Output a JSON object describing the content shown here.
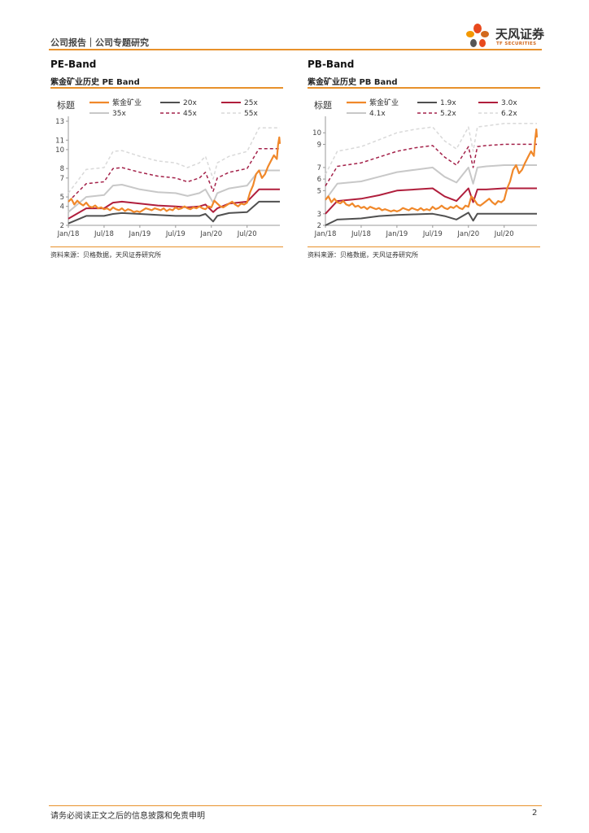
{
  "header": {
    "left_text": "公司报告｜公司专题研究",
    "brand_name": "天风证券",
    "brand_en": "TF SECURITIES"
  },
  "colors": {
    "accent": "#e8912b",
    "brand_petals": [
      "#e8491d",
      "#f39800",
      "#d2691e",
      "#555555"
    ]
  },
  "charts": [
    {
      "heading": "PE-Band",
      "subtitle": "紫金矿业历史 PE Band",
      "source": "资料来源：贝格数据，天风证券研究所"
    },
    {
      "heading": "PB-Band",
      "subtitle": "紫金矿业历史 PB Band",
      "source": "资料来源：贝格数据，天风证券研究所"
    }
  ],
  "chart_data": [
    {
      "type": "line",
      "title": "紫金矿业历史 PE Band",
      "legend_title": "标题",
      "legend_position": "top",
      "ylim": [
        2,
        13
      ],
      "yticks": [
        2,
        4,
        5,
        7,
        8,
        10,
        11,
        13
      ],
      "xlim": [
        0,
        35.5
      ],
      "xticks": [
        {
          "x": 0,
          "label": "Jan/18"
        },
        {
          "x": 6,
          "label": "Jul/18"
        },
        {
          "x": 12,
          "label": "Jan/19"
        },
        {
          "x": 18,
          "label": "Jul/19"
        },
        {
          "x": 24,
          "label": "Jan/20"
        },
        {
          "x": 30,
          "label": "Jul/20"
        }
      ],
      "series": [
        {
          "name": "紫金矿业",
          "color": "#f0882a",
          "style": "solid",
          "width": 2.2,
          "x": [
            0,
            0.5,
            1,
            1.5,
            2,
            2.5,
            3,
            3.5,
            4,
            4.5,
            5,
            5.5,
            6,
            6.5,
            7,
            7.5,
            8,
            8.5,
            9,
            9.5,
            10,
            10.5,
            11,
            11.5,
            12,
            12.5,
            13,
            13.5,
            14,
            14.5,
            15,
            15.5,
            16,
            16.5,
            17,
            17.5,
            18,
            18.5,
            19,
            19.5,
            20,
            20.5,
            21,
            21.5,
            22,
            22.5,
            23,
            23.5,
            24,
            24.5,
            25,
            25.5,
            26,
            26.5,
            27,
            27.5,
            28,
            28.5,
            29,
            29.5,
            30,
            30.5,
            31,
            31.5,
            32,
            32.5,
            33,
            33.5,
            34,
            34.5,
            35,
            35.2,
            35.4,
            35.5
          ],
          "values": [
            4.5,
            4.8,
            4.2,
            4.6,
            4.3,
            4.1,
            4.4,
            4.0,
            3.9,
            4.1,
            3.8,
            3.9,
            3.7,
            3.8,
            3.6,
            3.9,
            3.7,
            3.6,
            3.8,
            3.5,
            3.7,
            3.6,
            3.4,
            3.5,
            3.4,
            3.6,
            3.8,
            3.7,
            3.6,
            3.8,
            3.7,
            3.6,
            3.8,
            3.5,
            3.7,
            3.6,
            3.9,
            3.7,
            3.8,
            4.0,
            3.8,
            3.7,
            3.9,
            3.8,
            4.0,
            3.8,
            3.7,
            4.0,
            3.9,
            4.6,
            4.3,
            4.0,
            3.9,
            4.1,
            4.3,
            4.5,
            4.2,
            4.0,
            4.3,
            4.2,
            4.4,
            5.5,
            6.2,
            7.4,
            7.8,
            7.0,
            7.4,
            8.2,
            8.8,
            9.4,
            9.0,
            10.5,
            11.3,
            10.6
          ]
        },
        {
          "name": "20x",
          "color": "#505050",
          "style": "solid",
          "width": 2,
          "x": [
            0,
            3,
            6,
            7.5,
            9,
            12,
            15,
            18,
            20,
            22,
            23,
            24.3,
            25,
            27,
            30,
            32,
            35.5
          ],
          "values": [
            2.2,
            3.0,
            3.0,
            3.2,
            3.3,
            3.2,
            3.1,
            3.0,
            3.0,
            3.0,
            3.2,
            2.4,
            3.0,
            3.3,
            3.4,
            4.5,
            4.5
          ]
        },
        {
          "name": "25x",
          "color": "#b01e3c",
          "style": "solid",
          "width": 2,
          "x": [
            0,
            3,
            6,
            7.5,
            9,
            12,
            15,
            18,
            20,
            22,
            23,
            24.3,
            25,
            27,
            30,
            32,
            35.5
          ],
          "values": [
            2.7,
            3.8,
            3.8,
            4.4,
            4.5,
            4.3,
            4.1,
            4.0,
            3.9,
            4.0,
            4.2,
            3.4,
            3.8,
            4.3,
            4.5,
            5.8,
            5.8
          ]
        },
        {
          "name": "35x",
          "color": "#c8c8c8",
          "style": "solid",
          "width": 2,
          "x": [
            0,
            3,
            6,
            7.5,
            9,
            12,
            15,
            18,
            20,
            22,
            23,
            24.3,
            25,
            27,
            30,
            32,
            35.5
          ],
          "values": [
            3.4,
            5.0,
            5.2,
            6.2,
            6.3,
            5.8,
            5.5,
            5.4,
            5.1,
            5.4,
            5.8,
            4.4,
            5.4,
            5.9,
            6.2,
            7.8,
            7.8
          ]
        },
        {
          "name": "45x",
          "color": "#a4224a",
          "style": "dashed",
          "width": 1.5,
          "x": [
            0,
            3,
            6,
            7.5,
            9,
            12,
            15,
            18,
            20,
            22,
            23,
            24.3,
            25,
            27,
            30,
            32,
            35.5
          ],
          "values": [
            4.5,
            6.4,
            6.6,
            8.0,
            8.1,
            7.6,
            7.2,
            7.0,
            6.6,
            7.0,
            7.6,
            5.6,
            7.0,
            7.6,
            8.0,
            10.1,
            10.1
          ]
        },
        {
          "name": "55x",
          "color": "#d9d9d9",
          "style": "dashed",
          "width": 1.5,
          "x": [
            0,
            3,
            6,
            7.5,
            9,
            12,
            15,
            18,
            20,
            22,
            23,
            24.3,
            25,
            27,
            30,
            32,
            35.5
          ],
          "values": [
            5.4,
            7.9,
            8.1,
            9.8,
            9.9,
            9.3,
            8.8,
            8.6,
            8.1,
            8.6,
            9.3,
            6.9,
            8.6,
            9.3,
            9.8,
            12.3,
            12.3
          ]
        }
      ]
    },
    {
      "type": "line",
      "title": "紫金矿业历史 PB Band",
      "legend_title": "标题",
      "legend_position": "top",
      "ylim": [
        2,
        11
      ],
      "yticks": [
        2,
        3,
        5,
        6,
        7,
        9,
        10
      ],
      "xlim": [
        0,
        35.5
      ],
      "xticks": [
        {
          "x": 0,
          "label": "Jan/18"
        },
        {
          "x": 6,
          "label": "Jul/18"
        },
        {
          "x": 12,
          "label": "Jan/19"
        },
        {
          "x": 18,
          "label": "Jul/19"
        },
        {
          "x": 24,
          "label": "Jan/20"
        },
        {
          "x": 30,
          "label": "Jul/20"
        }
      ],
      "series": [
        {
          "name": "紫金矿业",
          "color": "#f0882a",
          "style": "solid",
          "width": 2.2,
          "x": [
            0,
            0.5,
            1,
            1.5,
            2,
            2.5,
            3,
            3.5,
            4,
            4.5,
            5,
            5.5,
            6,
            6.5,
            7,
            7.5,
            8,
            8.5,
            9,
            9.5,
            10,
            10.5,
            11,
            11.5,
            12,
            12.5,
            13,
            13.5,
            14,
            14.5,
            15,
            15.5,
            16,
            16.5,
            17,
            17.5,
            18,
            18.5,
            19,
            19.5,
            20,
            20.5,
            21,
            21.5,
            22,
            22.5,
            23,
            23.5,
            24,
            24.5,
            25,
            25.5,
            26,
            26.5,
            27,
            27.5,
            28,
            28.5,
            29,
            29.5,
            30,
            30.5,
            31,
            31.5,
            32,
            32.5,
            33,
            33.5,
            34,
            34.5,
            35,
            35.2,
            35.4,
            35.5
          ],
          "values": [
            4.2,
            4.5,
            4.0,
            4.3,
            4.0,
            3.9,
            4.1,
            3.8,
            3.7,
            3.9,
            3.6,
            3.7,
            3.5,
            3.6,
            3.4,
            3.6,
            3.5,
            3.4,
            3.5,
            3.3,
            3.4,
            3.3,
            3.2,
            3.3,
            3.2,
            3.3,
            3.5,
            3.4,
            3.3,
            3.5,
            3.4,
            3.3,
            3.5,
            3.3,
            3.4,
            3.3,
            3.6,
            3.4,
            3.5,
            3.7,
            3.5,
            3.4,
            3.6,
            3.5,
            3.7,
            3.5,
            3.4,
            3.7,
            3.6,
            4.5,
            4.2,
            3.8,
            3.7,
            3.9,
            4.1,
            4.3,
            4.0,
            3.8,
            4.1,
            4.0,
            4.2,
            5.2,
            5.8,
            6.8,
            7.2,
            6.5,
            6.8,
            7.4,
            7.9,
            8.4,
            8.0,
            9.4,
            10.3,
            9.6
          ]
        },
        {
          "name": "1.9x",
          "color": "#505050",
          "style": "solid",
          "width": 2,
          "x": [
            0,
            2,
            6,
            9,
            12,
            15,
            18,
            20,
            22,
            24,
            24.8,
            25.5,
            27,
            30,
            35.5
          ],
          "values": [
            2.0,
            2.5,
            2.6,
            2.8,
            2.9,
            2.95,
            3.0,
            2.8,
            2.5,
            3.1,
            2.4,
            3.0,
            3.0,
            3.0,
            3.0
          ]
        },
        {
          "name": "3.0x",
          "color": "#b01e3c",
          "style": "solid",
          "width": 2,
          "x": [
            0,
            2,
            6,
            9,
            12,
            15,
            18,
            20,
            22,
            24,
            24.8,
            25.5,
            27,
            30,
            35.5
          ],
          "values": [
            3.0,
            4.1,
            4.3,
            4.6,
            5.0,
            5.1,
            5.2,
            4.5,
            4.1,
            5.2,
            4.0,
            5.1,
            5.1,
            5.2,
            5.2
          ]
        },
        {
          "name": "4.1x",
          "color": "#c8c8c8",
          "style": "solid",
          "width": 2,
          "x": [
            0,
            2,
            6,
            9,
            12,
            15,
            18,
            20,
            22,
            24,
            24.8,
            25.5,
            27,
            30,
            35.5
          ],
          "values": [
            4.2,
            5.6,
            5.8,
            6.2,
            6.6,
            6.8,
            7.0,
            6.2,
            5.7,
            7.0,
            5.6,
            7.0,
            7.1,
            7.2,
            7.2
          ]
        },
        {
          "name": "5.2x",
          "color": "#a4224a",
          "style": "dashed",
          "width": 1.5,
          "x": [
            0,
            2,
            6,
            9,
            12,
            15,
            18,
            20,
            22,
            24,
            24.8,
            25.5,
            27,
            30,
            35.5
          ],
          "values": [
            5.4,
            7.1,
            7.4,
            7.9,
            8.4,
            8.7,
            8.9,
            7.9,
            7.2,
            8.8,
            7.0,
            8.8,
            8.9,
            9.0,
            9.0
          ]
        },
        {
          "name": "6.2x",
          "color": "#d9d9d9",
          "style": "dashed",
          "width": 1.5,
          "x": [
            0,
            2,
            6,
            9,
            12,
            15,
            18,
            20,
            22,
            24,
            24.8,
            25.5,
            27,
            30,
            35.5
          ],
          "values": [
            6.4,
            8.4,
            8.8,
            9.4,
            10.0,
            10.3,
            10.5,
            9.3,
            8.6,
            10.5,
            8.4,
            10.5,
            10.6,
            10.8,
            10.8
          ]
        }
      ]
    }
  ],
  "footer": {
    "disclaimer": "请务必阅读正文之后的信息披露和免责申明",
    "page_number": "2"
  }
}
